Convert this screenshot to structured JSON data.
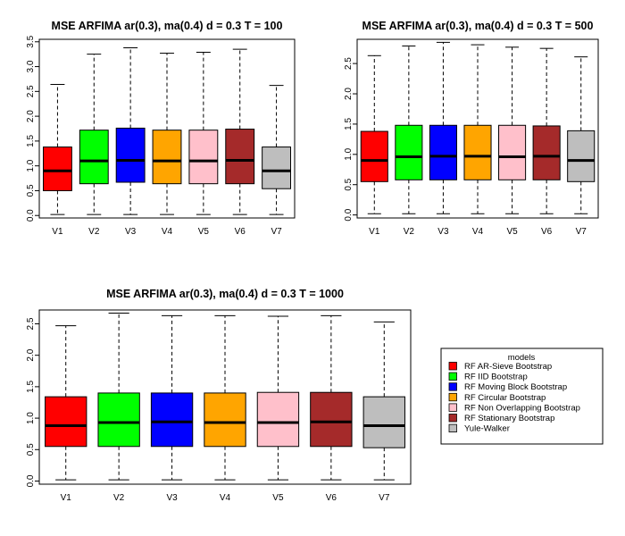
{
  "chart_data": [
    {
      "type": "boxplot",
      "title": "MSE ARFIMA ar(0.3), ma(0.4) d = 0.3 T = 100",
      "xlabel": "",
      "ylabel": "",
      "categories": [
        "V1",
        "V2",
        "V3",
        "V4",
        "V5",
        "V6",
        "V7"
      ],
      "ylim": [
        -0.05,
        3.55
      ],
      "yticks": [
        "0.0",
        "0.5",
        "1.0",
        "1.5",
        "2.0",
        "2.5",
        "3.0",
        "3.5"
      ],
      "boxes": [
        {
          "min": 0.02,
          "q1": 0.5,
          "median": 0.9,
          "q3": 1.38,
          "max": 2.64
        },
        {
          "min": 0.02,
          "q1": 0.64,
          "median": 1.1,
          "q3": 1.72,
          "max": 3.25
        },
        {
          "min": 0.02,
          "q1": 0.67,
          "median": 1.11,
          "q3": 1.76,
          "max": 3.38
        },
        {
          "min": 0.02,
          "q1": 0.64,
          "median": 1.1,
          "q3": 1.72,
          "max": 3.27
        },
        {
          "min": 0.02,
          "q1": 0.64,
          "median": 1.1,
          "q3": 1.72,
          "max": 3.29
        },
        {
          "min": 0.02,
          "q1": 0.64,
          "median": 1.11,
          "q3": 1.74,
          "max": 3.35
        },
        {
          "min": 0.02,
          "q1": 0.54,
          "median": 0.9,
          "q3": 1.38,
          "max": 2.62
        }
      ],
      "grid": false
    },
    {
      "type": "boxplot",
      "title": "MSE ARFIMA ar(0.3), ma(0.4) d = 0.3 T = 500",
      "xlabel": "",
      "ylabel": "",
      "categories": [
        "V1",
        "V2",
        "V3",
        "V4",
        "V5",
        "V6",
        "V7"
      ],
      "ylim": [
        -0.05,
        2.9
      ],
      "yticks": [
        "0.0",
        "0.5",
        "1.0",
        "1.5",
        "2.0",
        "2.5"
      ],
      "boxes": [
        {
          "min": 0.02,
          "q1": 0.55,
          "median": 0.9,
          "q3": 1.38,
          "max": 2.63
        },
        {
          "min": 0.02,
          "q1": 0.58,
          "median": 0.96,
          "q3": 1.48,
          "max": 2.79
        },
        {
          "min": 0.02,
          "q1": 0.58,
          "median": 0.97,
          "q3": 1.48,
          "max": 2.85
        },
        {
          "min": 0.02,
          "q1": 0.58,
          "median": 0.97,
          "q3": 1.48,
          "max": 2.81
        },
        {
          "min": 0.02,
          "q1": 0.58,
          "median": 0.96,
          "q3": 1.48,
          "max": 2.77
        },
        {
          "min": 0.02,
          "q1": 0.58,
          "median": 0.97,
          "q3": 1.47,
          "max": 2.75
        },
        {
          "min": 0.02,
          "q1": 0.55,
          "median": 0.9,
          "q3": 1.39,
          "max": 2.61
        }
      ],
      "grid": false
    },
    {
      "type": "boxplot",
      "title": "MSE ARFIMA ar(0.3), ma(0.4) d = 0.3 T = 1000",
      "xlabel": "",
      "ylabel": "",
      "categories": [
        "V1",
        "V2",
        "V3",
        "V4",
        "V5",
        "V6",
        "V7"
      ],
      "ylim": [
        -0.05,
        2.72
      ],
      "yticks": [
        "0.0",
        "0.5",
        "1.0",
        "1.5",
        "2.0",
        "2.5"
      ],
      "boxes": [
        {
          "min": 0.02,
          "q1": 0.55,
          "median": 0.88,
          "q3": 1.34,
          "max": 2.47
        },
        {
          "min": 0.02,
          "q1": 0.55,
          "median": 0.93,
          "q3": 1.4,
          "max": 2.67
        },
        {
          "min": 0.02,
          "q1": 0.55,
          "median": 0.94,
          "q3": 1.4,
          "max": 2.63
        },
        {
          "min": 0.02,
          "q1": 0.55,
          "median": 0.93,
          "q3": 1.4,
          "max": 2.63
        },
        {
          "min": 0.02,
          "q1": 0.55,
          "median": 0.93,
          "q3": 1.41,
          "max": 2.62
        },
        {
          "min": 0.02,
          "q1": 0.55,
          "median": 0.94,
          "q3": 1.41,
          "max": 2.63
        },
        {
          "min": 0.02,
          "q1": 0.53,
          "median": 0.88,
          "q3": 1.34,
          "max": 2.53
        }
      ],
      "grid": false
    }
  ],
  "series_colors": [
    "#ff0000",
    "#00ff00",
    "#0000ff",
    "#ffa500",
    "#ffc0cb",
    "#a52a2a",
    "#bebebe"
  ],
  "legend": {
    "title": "models",
    "placement": "right of bottom panel",
    "items": [
      "RF AR-Sieve Bootstrap",
      "RF IID Bootstrap",
      "RF Moving Block Bootstrap",
      "RF Circular Bootstrap",
      "RF Non Overlapping Bootstrap",
      "RF Stationary Bootstrap",
      "Yule-Walker"
    ]
  }
}
